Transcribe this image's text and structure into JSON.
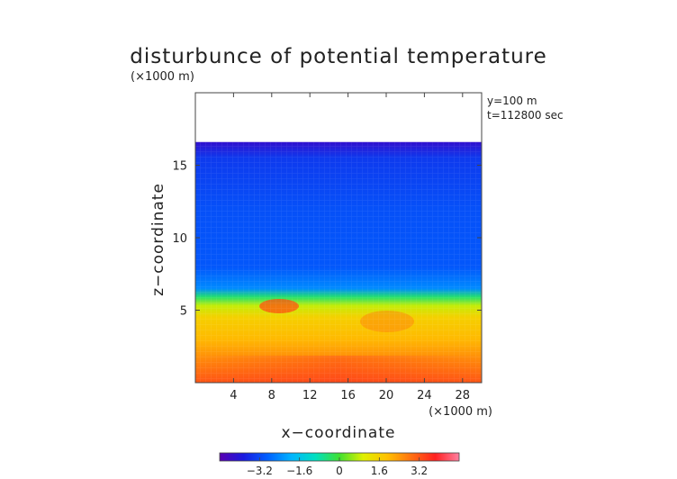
{
  "chart_data": {
    "type": "heatmap",
    "title": "disturbunce of potential temperature",
    "y_unit_label": "(×1000 m)",
    "x_unit_label": "(×1000 m)",
    "xlabel": "x−coordinate",
    "ylabel": "z−coordinate",
    "annotations": [
      "y=100 m",
      "t=112800 sec"
    ],
    "xlim": [
      0,
      30
    ],
    "ylim": [
      0,
      20
    ],
    "xticks": [
      4,
      8,
      12,
      16,
      20,
      24,
      28
    ],
    "yticks": [
      5,
      10,
      15
    ],
    "field_top_z": 16.6,
    "colorbar": {
      "range": [
        -4.8,
        4.8
      ],
      "ticks": [
        -3.2,
        -1.6,
        0,
        1.6,
        3.2
      ],
      "tick_labels": [
        "−3.2",
        "−1.6",
        "0",
        "1.6",
        "3.2"
      ],
      "colormap": [
        "#5a00b0",
        "#1a1ae0",
        "#0060ff",
        "#00b4ff",
        "#00e0c0",
        "#40e030",
        "#e0f000",
        "#ffc000",
        "#ff7010",
        "#ff2020",
        "#ff80a0"
      ]
    },
    "field_profile": [
      {
        "z": 0.0,
        "value": 3.2
      },
      {
        "z": 1.5,
        "value": 2.6
      },
      {
        "z": 3.0,
        "value": 2.0
      },
      {
        "z": 4.5,
        "value": 1.6
      },
      {
        "z": 5.3,
        "value": 0.8
      },
      {
        "z": 5.9,
        "value": -0.4
      },
      {
        "z": 6.5,
        "value": -2.4
      },
      {
        "z": 8.0,
        "value": -3.0
      },
      {
        "z": 12.0,
        "value": -3.1
      },
      {
        "z": 15.5,
        "value": -3.4
      },
      {
        "z": 16.6,
        "value": -4.2
      }
    ]
  }
}
